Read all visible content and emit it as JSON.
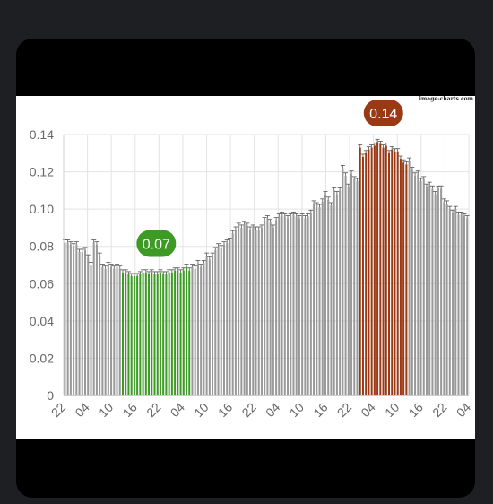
{
  "watermark": "image-charts.com",
  "chart_data": {
    "type": "bar",
    "ylim": [
      0,
      0.14
    ],
    "yticks": [
      "0",
      "0.02",
      "0.04",
      "0.06",
      "0.08",
      "0.10",
      "0.12",
      "0.14"
    ],
    "xticks": [
      "22",
      "04",
      "10",
      "16",
      "22",
      "04",
      "10",
      "16",
      "22",
      "04",
      "10",
      "16",
      "22",
      "04",
      "10",
      "16",
      "22",
      "04"
    ],
    "grid": true,
    "colors": {
      "default": "#999999",
      "low": "#3d9b25",
      "high": "#9a3a15"
    },
    "values": [
      0.082,
      0.082,
      0.081,
      0.08,
      0.081,
      0.077,
      0.077,
      0.078,
      0.074,
      0.07,
      0.082,
      0.081,
      0.075,
      0.069,
      0.068,
      0.07,
      0.069,
      0.068,
      0.069,
      0.068,
      0.066,
      0.066,
      0.065,
      0.064,
      0.064,
      0.064,
      0.065,
      0.066,
      0.066,
      0.065,
      0.066,
      0.065,
      0.065,
      0.066,
      0.065,
      0.065,
      0.066,
      0.066,
      0.067,
      0.067,
      0.066,
      0.067,
      0.069,
      0.067,
      0.069,
      0.068,
      0.071,
      0.069,
      0.071,
      0.075,
      0.073,
      0.075,
      0.078,
      0.08,
      0.079,
      0.081,
      0.082,
      0.083,
      0.087,
      0.089,
      0.091,
      0.09,
      0.092,
      0.091,
      0.089,
      0.09,
      0.089,
      0.089,
      0.09,
      0.094,
      0.095,
      0.093,
      0.09,
      0.094,
      0.096,
      0.097,
      0.096,
      0.095,
      0.096,
      0.097,
      0.096,
      0.095,
      0.096,
      0.095,
      0.096,
      0.098,
      0.103,
      0.102,
      0.101,
      0.104,
      0.108,
      0.105,
      0.102,
      0.11,
      0.108,
      0.11,
      0.122,
      0.118,
      0.112,
      0.119,
      0.116,
      0.115,
      0.133,
      0.128,
      0.13,
      0.132,
      0.133,
      0.134,
      0.136,
      0.135,
      0.133,
      0.134,
      0.13,
      0.132,
      0.131,
      0.131,
      0.127,
      0.125,
      0.124,
      0.126,
      0.121,
      0.118,
      0.119,
      0.115,
      0.116,
      0.112,
      0.113,
      0.111,
      0.108,
      0.111,
      0.111,
      0.104,
      0.103,
      0.1,
      0.098,
      0.1,
      0.097,
      0.097,
      0.096,
      0.095
    ],
    "highlights": [
      {
        "start": 20,
        "end": 43,
        "color": "#3d9b25",
        "label": "0.07",
        "label_value": 0.07
      },
      {
        "start": 102,
        "end": 118,
        "color": "#9a3a15",
        "label": "0.14",
        "label_value": 0.14
      }
    ]
  }
}
